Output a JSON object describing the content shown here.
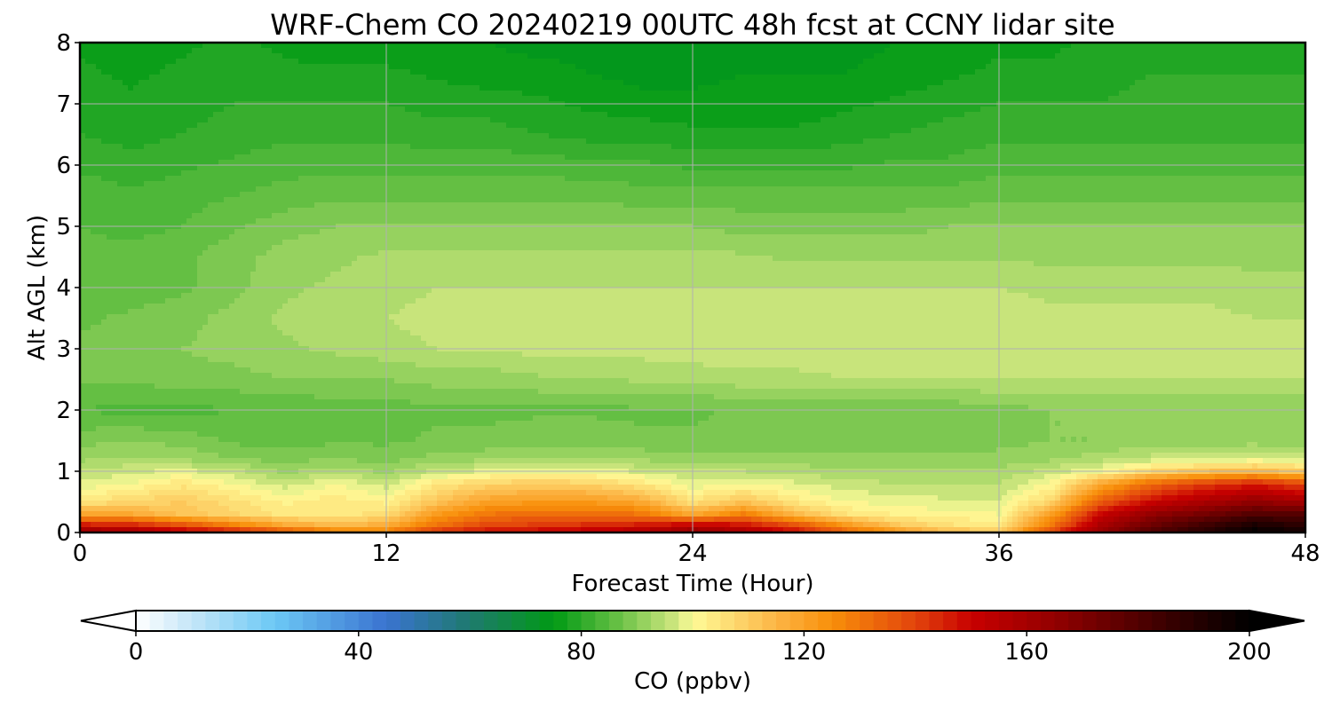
{
  "chart_data": {
    "type": "heatmap",
    "title": "WRF-Chem CO  20240219 00UTC 48h fcst at CCNY lidar site",
    "xlabel": "Forecast Time (Hour)",
    "ylabel": "Alt AGL (km)",
    "xlim": [
      0,
      48
    ],
    "ylim": [
      0,
      8
    ],
    "xticks": [
      0,
      12,
      24,
      36,
      48
    ],
    "yticks": [
      0,
      1,
      2,
      3,
      4,
      5,
      6,
      7,
      8
    ],
    "grid": true,
    "x_hours": [
      0,
      2,
      4,
      6,
      8,
      10,
      12,
      14,
      16,
      18,
      20,
      22,
      24,
      26,
      28,
      30,
      32,
      34,
      36,
      38,
      40,
      42,
      44,
      46,
      48
    ],
    "y_km": [
      0,
      0.1,
      0.3,
      0.5,
      0.8,
      1.0,
      1.2,
      1.5,
      2.0,
      2.5,
      3.0,
      3.5,
      4.0,
      4.5,
      5.0,
      5.5,
      6.0,
      6.5,
      7.0,
      7.5,
      8.0
    ],
    "co_ppbv_rows": [
      [
        165,
        162,
        155,
        150,
        140,
        132,
        130,
        145,
        150,
        152,
        155,
        158,
        165,
        160,
        150,
        135,
        125,
        115,
        112,
        140,
        165,
        180,
        190,
        200,
        195
      ],
      [
        150,
        148,
        140,
        130,
        120,
        115,
        118,
        132,
        140,
        142,
        145,
        148,
        155,
        150,
        140,
        125,
        112,
        106,
        104,
        130,
        160,
        175,
        185,
        195,
        190
      ],
      [
        120,
        118,
        112,
        108,
        104,
        104,
        106,
        122,
        130,
        132,
        132,
        130,
        118,
        128,
        115,
        105,
        102,
        101,
        100,
        120,
        150,
        165,
        172,
        180,
        178
      ],
      [
        104,
        108,
        110,
        106,
        102,
        104,
        102,
        112,
        120,
        122,
        122,
        118,
        105,
        112,
        104,
        100,
        99,
        98,
        98,
        108,
        135,
        150,
        158,
        165,
        160
      ],
      [
        98,
        100,
        104,
        100,
        96,
        100,
        96,
        104,
        108,
        110,
        108,
        104,
        98,
        100,
        98,
        96,
        95,
        95,
        95,
        100,
        118,
        132,
        140,
        145,
        138
      ],
      [
        95,
        97,
        98,
        96,
        92,
        94,
        92,
        96,
        98,
        100,
        99,
        97,
        95,
        95,
        94,
        93,
        93,
        93,
        93,
        96,
        100,
        108,
        112,
        115,
        110
      ],
      [
        92,
        93,
        92,
        90,
        89,
        90,
        89,
        91,
        92,
        93,
        93,
        92,
        91,
        91,
        91,
        91,
        91,
        91,
        91,
        92,
        94,
        96,
        97,
        98,
        97
      ],
      [
        89,
        90,
        89,
        87,
        86,
        87,
        87,
        88,
        88,
        89,
        89,
        88,
        88,
        88,
        88,
        88,
        88,
        88,
        89,
        90,
        90,
        91,
        91,
        91,
        91
      ],
      [
        85,
        84,
        84,
        85,
        85,
        86,
        86,
        87,
        87,
        87,
        87,
        87,
        87,
        88,
        88,
        88,
        88,
        88,
        89,
        90,
        90,
        90,
        90,
        90,
        90
      ],
      [
        88,
        88,
        89,
        89,
        90,
        90,
        90,
        91,
        91,
        92,
        92,
        93,
        93,
        94,
        94,
        95,
        95,
        95,
        95,
        95,
        95,
        95,
        95,
        95,
        95
      ],
      [
        88,
        89,
        90,
        91,
        92,
        93,
        94,
        95,
        95,
        96,
        96,
        96,
        97,
        97,
        97,
        97,
        97,
        97,
        97,
        97,
        97,
        97,
        97,
        96,
        96
      ],
      [
        87,
        88,
        89,
        91,
        93,
        94,
        95,
        96,
        96,
        96,
        96,
        97,
        97,
        97,
        97,
        97,
        97,
        97,
        97,
        96,
        96,
        96,
        96,
        95,
        95
      ],
      [
        86,
        86,
        87,
        89,
        92,
        93,
        94,
        95,
        95,
        95,
        95,
        95,
        95,
        95,
        95,
        95,
        95,
        95,
        95,
        94,
        94,
        94,
        94,
        93,
        93
      ],
      [
        86,
        86,
        87,
        89,
        91,
        92,
        93,
        93,
        93,
        93,
        93,
        93,
        93,
        93,
        92,
        92,
        92,
        92,
        92,
        92,
        92,
        92,
        92,
        92,
        92
      ],
      [
        85,
        84,
        85,
        87,
        89,
        90,
        90,
        90,
        90,
        90,
        90,
        90,
        90,
        89,
        89,
        89,
        89,
        90,
        90,
        90,
        90,
        90,
        90,
        90,
        90
      ],
      [
        84,
        83,
        84,
        85,
        86,
        87,
        87,
        87,
        87,
        87,
        87,
        86,
        86,
        86,
        86,
        86,
        86,
        86,
        87,
        87,
        87,
        87,
        87,
        87,
        87
      ],
      [
        82,
        81,
        82,
        83,
        84,
        84,
        84,
        84,
        84,
        84,
        83,
        83,
        82,
        82,
        82,
        82,
        83,
        83,
        84,
        84,
        84,
        84,
        84,
        84,
        84
      ],
      [
        80,
        79,
        80,
        81,
        82,
        82,
        82,
        81,
        81,
        80,
        79,
        79,
        78,
        78,
        78,
        79,
        80,
        81,
        82,
        82,
        82,
        82,
        82,
        82,
        82
      ],
      [
        79,
        78,
        79,
        80,
        80,
        80,
        80,
        79,
        79,
        78,
        77,
        76,
        76,
        76,
        76,
        77,
        78,
        79,
        80,
        80,
        80,
        81,
        81,
        81,
        81
      ],
      [
        78,
        77,
        78,
        79,
        78,
        78,
        78,
        77,
        76,
        76,
        75,
        74,
        74,
        75,
        75,
        75,
        76,
        77,
        78,
        78,
        79,
        80,
        80,
        80,
        80
      ],
      [
        77,
        76,
        77,
        78,
        77,
        76,
        76,
        76,
        75,
        74,
        74,
        73,
        73,
        74,
        74,
        74,
        75,
        76,
        77,
        77,
        78,
        79,
        79,
        79,
        79
      ]
    ],
    "colorbar": {
      "label": "CO  (ppbv)",
      "min": 0,
      "max": 200,
      "ticks": [
        0,
        40,
        80,
        120,
        160,
        200
      ],
      "extend": "both",
      "color_stops": [
        {
          "v": 0,
          "c": "#ffffff"
        },
        {
          "v": 10,
          "c": "#c5e6f8"
        },
        {
          "v": 25,
          "c": "#6cc8f5"
        },
        {
          "v": 45,
          "c": "#3a73d0"
        },
        {
          "v": 60,
          "c": "#1e7a6e"
        },
        {
          "v": 75,
          "c": "#009a14"
        },
        {
          "v": 86,
          "c": "#62be42"
        },
        {
          "v": 97,
          "c": "#cfe77f"
        },
        {
          "v": 100,
          "c": "#fefb98"
        },
        {
          "v": 115,
          "c": "#fcb545"
        },
        {
          "v": 125,
          "c": "#f88f0a"
        },
        {
          "v": 140,
          "c": "#e2440c"
        },
        {
          "v": 150,
          "c": "#c80000"
        },
        {
          "v": 165,
          "c": "#930000"
        },
        {
          "v": 185,
          "c": "#3a0000"
        },
        {
          "v": 200,
          "c": "#000000"
        }
      ]
    }
  }
}
